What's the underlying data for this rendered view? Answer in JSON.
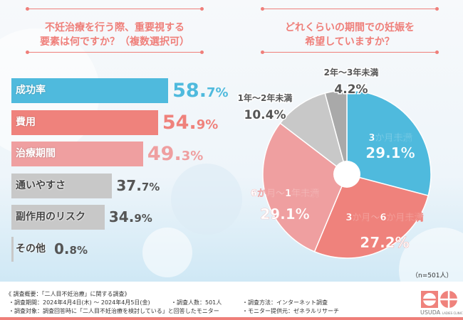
{
  "left_title": [
    "不妊治療を行う際、重要視する",
    "要素は何ですか？（複数選択可）"
  ],
  "right_title": [
    "どれくらいの期間での妊娠を",
    "希望していますか？"
  ],
  "colors": {
    "blue": "#4fbadd",
    "salmon": "#ef827c",
    "pink": "#ef9fa0",
    "gray": "#c8c8c8",
    "dark_gray": "#a9a9a9",
    "text_gray": "#555555"
  },
  "chart_data": [
    {
      "type": "bar",
      "orientation": "horizontal",
      "unit": "%",
      "categories": [
        "成功率",
        "費用",
        "治療期間",
        "通いやすさ",
        "副作用のリスク",
        "その他"
      ],
      "values": [
        58.7,
        54.9,
        49.3,
        37.7,
        34.9,
        0.8
      ],
      "labels": [
        {
          "int": "58.",
          "dec": "7%"
        },
        {
          "int": "54.",
          "dec": "9%"
        },
        {
          "int": "49.",
          "dec": "3%"
        },
        {
          "int": "37.",
          "dec": "7%"
        },
        {
          "int": "34.",
          "dec": "9%"
        },
        {
          "int": "0.",
          "dec": "8%"
        }
      ]
    },
    {
      "type": "pie",
      "style": "donut",
      "start": "12 o'clock",
      "direction": "clockwise",
      "categories": [
        "3か月未満",
        "3か月～6か月未満",
        "6か月～1年未満",
        "1年～2年未満",
        "2年～3年未満"
      ],
      "values": [
        29.1,
        27.2,
        29.1,
        10.4,
        4.2
      ],
      "labels": [
        "29.1%",
        "27.2%",
        "29.1%",
        "10.4%",
        "4.2%"
      ],
      "note": "（n=501人）"
    }
  ],
  "footer": {
    "heading": "《 調査概要：「二人目不妊治療」に関する調査》",
    "period": "・調査期間：2024年4月4日(木) ～ 2024年4月5日(金)",
    "count": "・調査人数：501人",
    "method": "・調査方法：インターネット調査",
    "target": "・調査対象：調査回答時に「二人目不妊治療を検討している」と回答したモニター",
    "provider": "・モニター提供元：ゼネラルリサーチ"
  },
  "logo": {
    "name": "USUDA",
    "sub": "LADIES CLINIC"
  }
}
